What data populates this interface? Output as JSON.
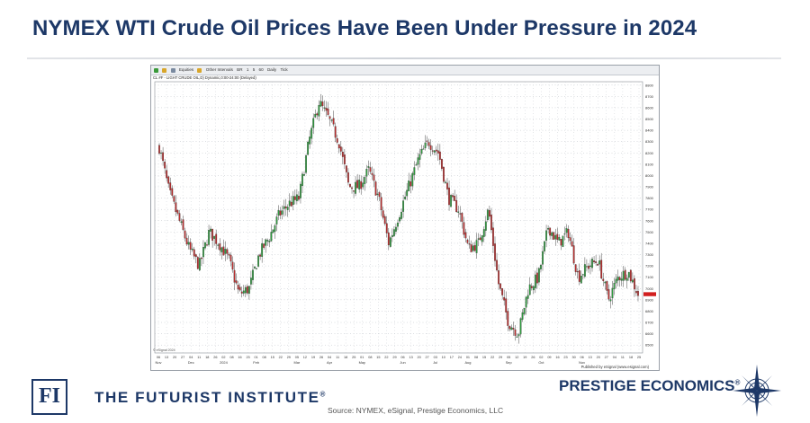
{
  "slide": {
    "title": "NYMEX WTI Crude Oil Prices Have Been Under Pressure in 2024",
    "source": "Source: NYMEX, eSignal, Prestige Economics, LLC"
  },
  "toolbar": {
    "equities": "Equities",
    "other_intervals": "Other Intervals",
    "intervals": [
      "1",
      "5",
      "60",
      "Daily",
      "Tick"
    ],
    "interval_prefix": "BR"
  },
  "chart_header": "CL #F - LIGHT CRUDE OIL,D) Dynamic,0:00-24:00 (Delayed)",
  "published_by": "Published by eSignal (www.esignal.com)",
  "copyright": "© eSignal 2024",
  "brands": {
    "futurist_logo": "FI",
    "futurist_name": "THE FUTURIST INSTITUTE",
    "futurist_mark": "®",
    "prestige_name": "PRESTIGE ECONOMICS",
    "prestige_mark": "®"
  },
  "colors": {
    "title": "#1d3867",
    "up_candle": "#2e9a3e",
    "down_candle": "#b92d2d",
    "last_price_marker": "#d21f1f"
  },
  "chart_data": {
    "type": "candlestick",
    "y_ticks": [
      6500,
      6600,
      6700,
      6800,
      6900,
      7000,
      7100,
      7200,
      7300,
      7400,
      7500,
      7600,
      7700,
      7800,
      7900,
      8000,
      8100,
      8200,
      8300,
      8400,
      8500,
      8600,
      8700,
      8800
    ],
    "ylim": [
      6430,
      8830
    ],
    "x_day_ticks": [
      "06",
      "13",
      "20",
      "27",
      "04",
      "11",
      "18",
      "26",
      "02",
      "08",
      "16",
      "23",
      "01",
      "08",
      "15",
      "22",
      "29",
      "05",
      "12",
      "19",
      "26",
      "04",
      "11",
      "18",
      "25",
      "01",
      "08",
      "15",
      "22",
      "29",
      "06",
      "13",
      "20",
      "27",
      "03",
      "10",
      "17",
      "24",
      "01",
      "08",
      "15",
      "22",
      "29",
      "05",
      "12",
      "19",
      "26",
      "02",
      "09",
      "16",
      "23",
      "30",
      "06",
      "13",
      "20",
      "27",
      "04",
      "11",
      "18",
      "25"
    ],
    "x_month_labels": [
      {
        "label": "Nov",
        "index": 0
      },
      {
        "label": "Dec",
        "index": 4
      },
      {
        "label": "2024",
        "index": 8
      },
      {
        "label": "Feb",
        "index": 12
      },
      {
        "label": "Mar",
        "index": 17
      },
      {
        "label": "Apr",
        "index": 21
      },
      {
        "label": "May",
        "index": 25
      },
      {
        "label": "Jun",
        "index": 30
      },
      {
        "label": "Jul",
        "index": 34
      },
      {
        "label": "Aug",
        "index": 38
      },
      {
        "label": "Sep",
        "index": 43
      },
      {
        "label": "Oct",
        "index": 47
      },
      {
        "label": "Nov",
        "index": 52
      }
    ],
    "close_path": [
      8250,
      7850,
      7600,
      7350,
      7200,
      7500,
      7400,
      7250,
      6950,
      7000,
      7300,
      7450,
      7650,
      7750,
      7800,
      8300,
      8650,
      8500,
      8300,
      7900,
      7900,
      8050,
      7800,
      7400,
      7650,
      7900,
      8150,
      8300,
      8200,
      7800,
      7700,
      7350,
      7400,
      7700,
      7050,
      6700,
      6600,
      7000,
      7100,
      7550,
      7400,
      7500,
      7100,
      7200,
      7250,
      6900,
      7100,
      7150,
      6950
    ],
    "last_price": 6950
  }
}
